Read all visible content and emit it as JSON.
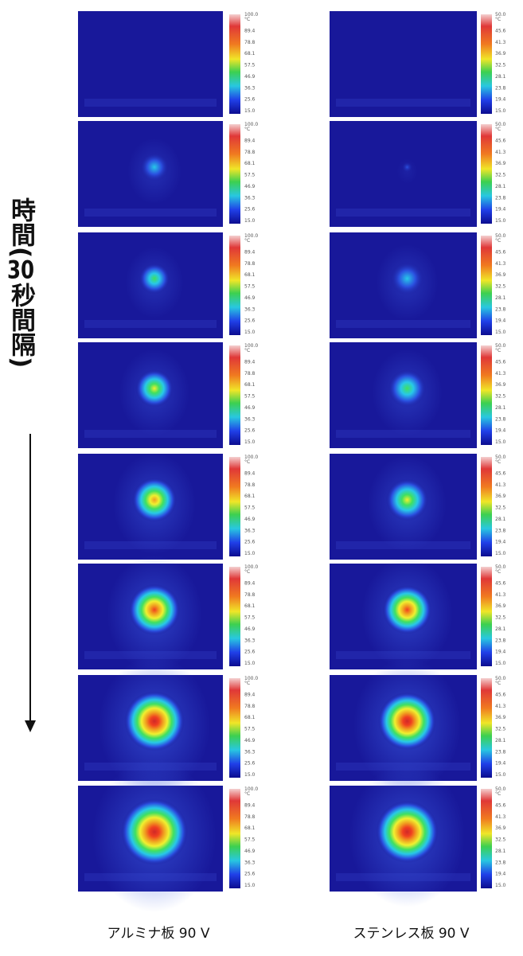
{
  "time_label": {
    "parts": [
      "時",
      "間",
      "(",
      "30",
      "秒",
      "間",
      "隔",
      ")"
    ]
  },
  "panels": [
    {
      "caption": "アルミナ板 90 V",
      "scale_labels": [
        "100.0",
        "°C",
        "89.4",
        "78.8",
        "68.1",
        "57.5",
        "46.9",
        "36.3",
        "25.6",
        "15.0"
      ]
    },
    {
      "caption": "ステンレス板 90 V",
      "scale_labels": [
        "50.0",
        "°C",
        "45.6",
        "41.3",
        "36.9",
        "32.5",
        "28.1",
        "23.8",
        "19.4",
        "15.0"
      ]
    }
  ]
}
